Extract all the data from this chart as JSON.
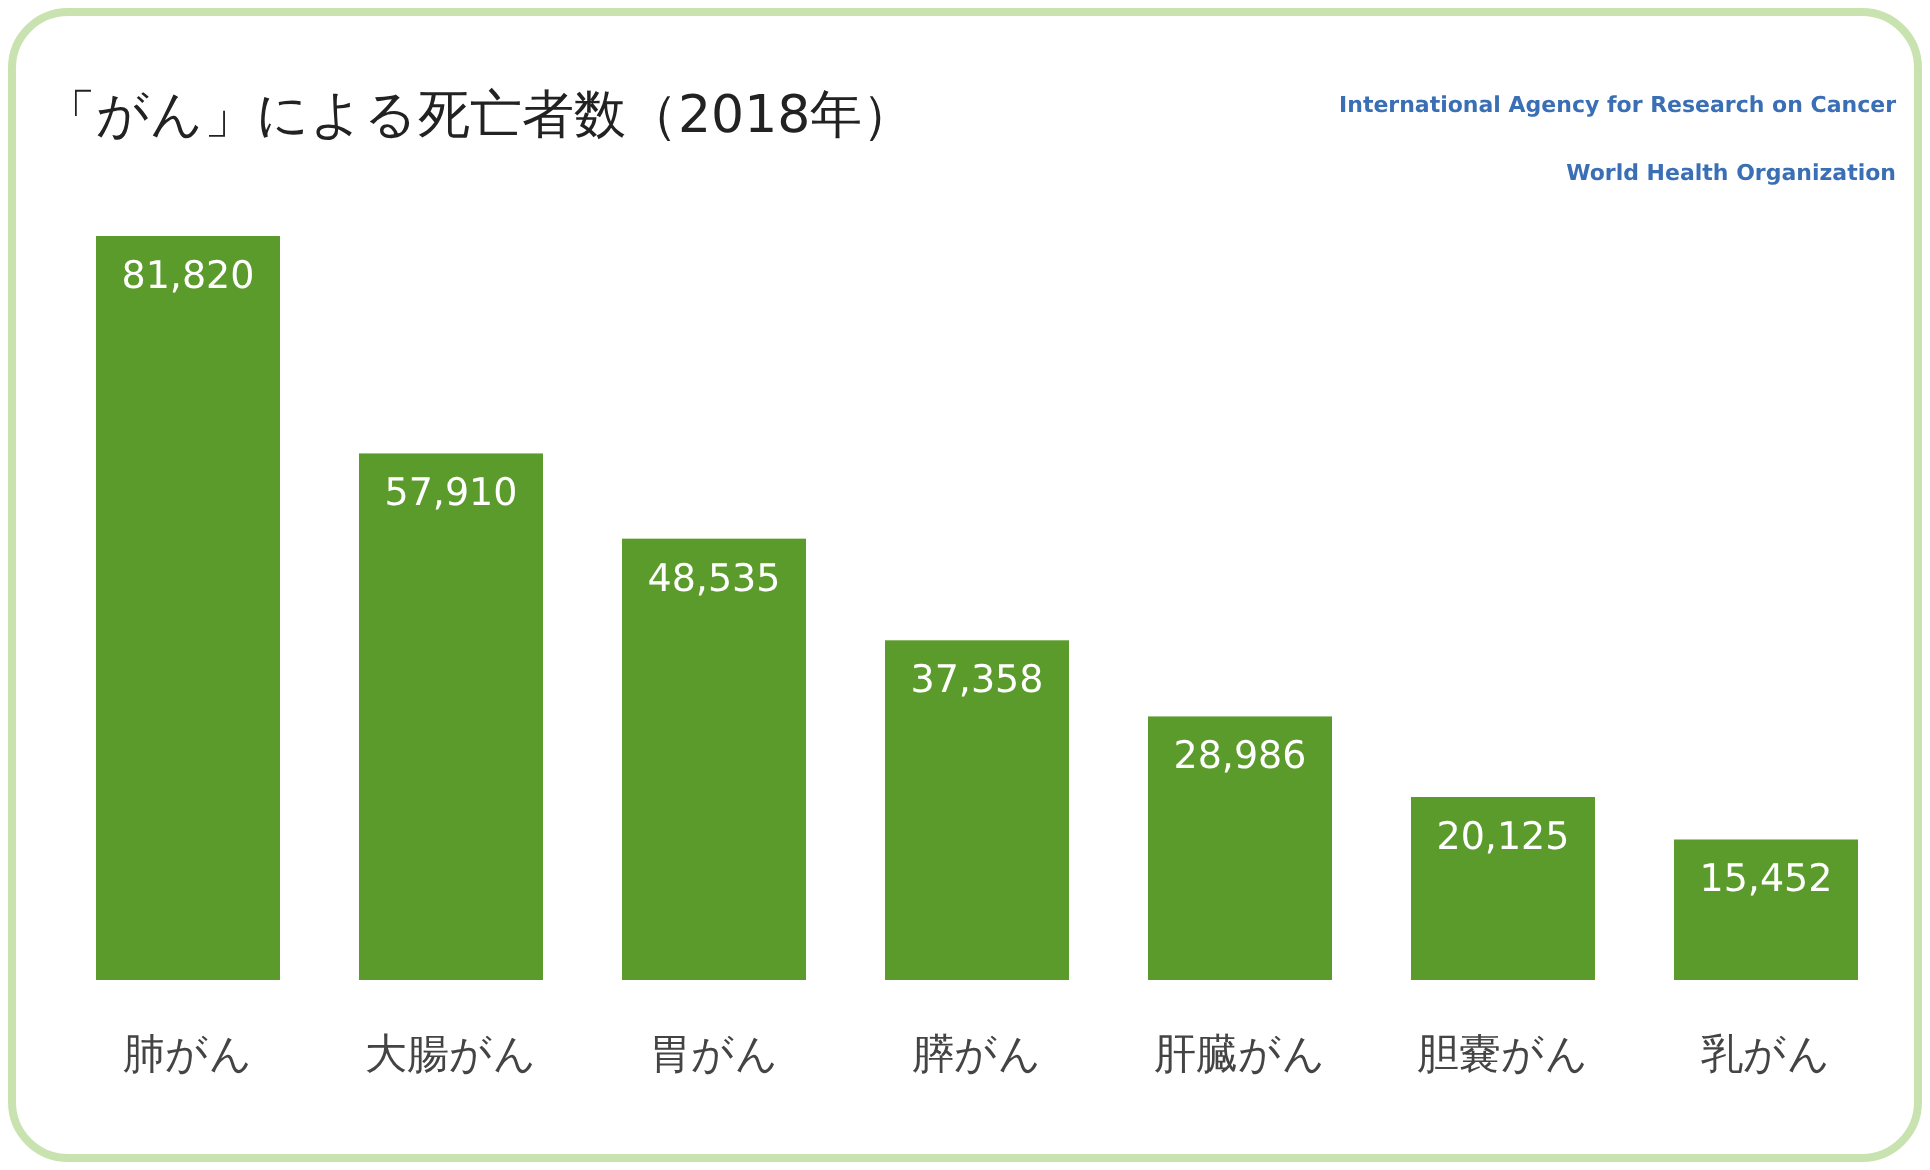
{
  "chart_data": {
    "type": "bar",
    "title": "「がん」による死亡者数（2018年）",
    "categories": [
      "肺がん",
      "大腸がん",
      "胃がん",
      "膵がん",
      "肝臓がん",
      "胆嚢がん",
      "乳がん"
    ],
    "values": [
      81820,
      57910,
      48535,
      37358,
      28986,
      20125,
      15452
    ],
    "value_labels": [
      "81,820",
      "57,910",
      "48,535",
      "37,358",
      "28,986",
      "20,125",
      "15,452"
    ],
    "color": "#5b9b2b",
    "annotations": [
      "International Agency for Research on Cancer",
      "World Health Organization"
    ]
  }
}
